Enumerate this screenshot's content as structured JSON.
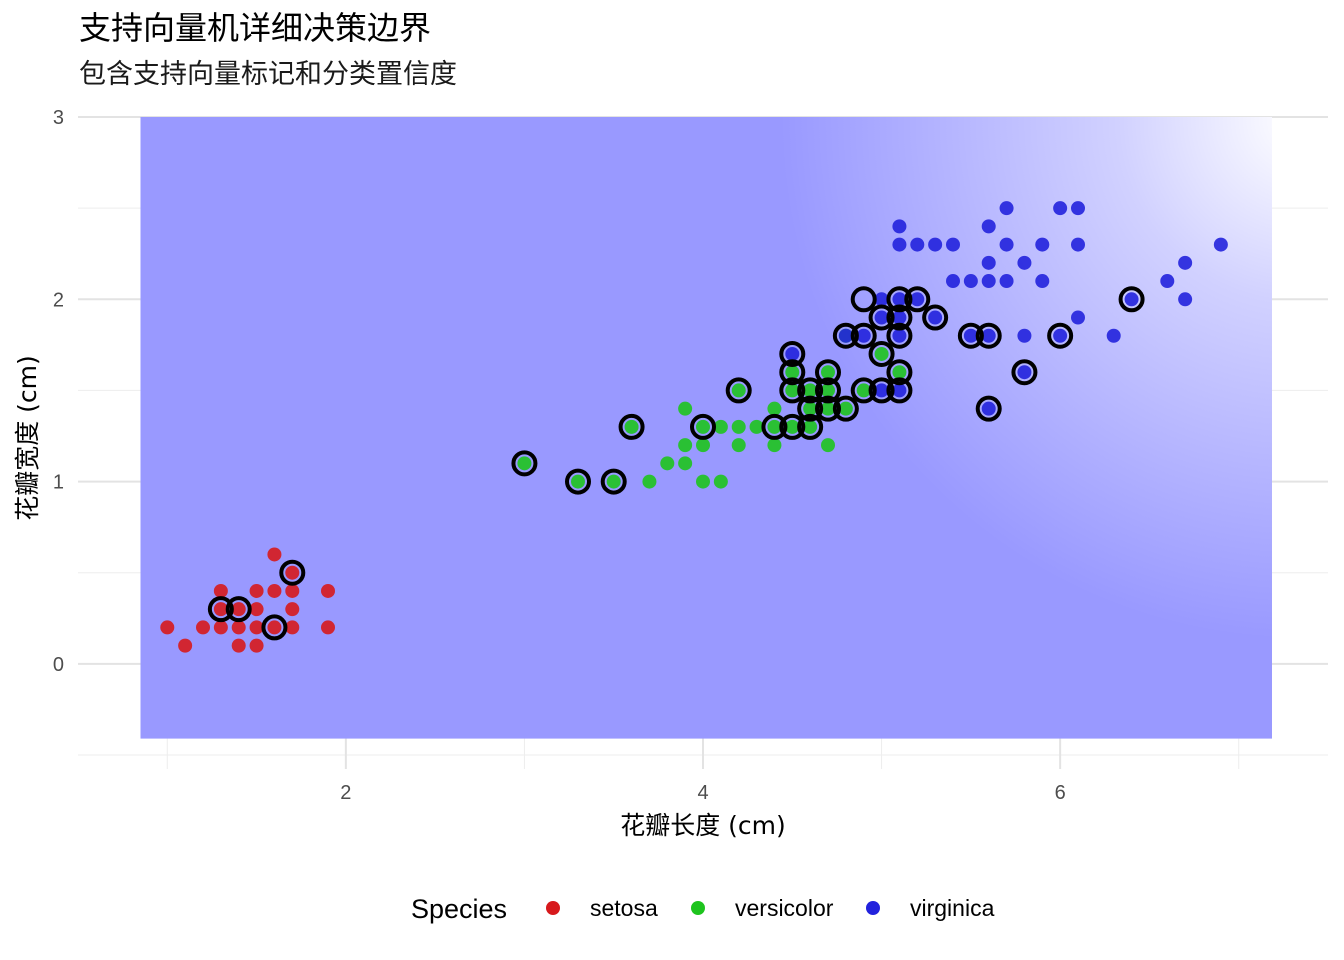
{
  "title": "支持向量机详细决策边界",
  "subtitle": "包含支持向量标记和分类置信度",
  "chart_data": {
    "type": "scatter",
    "title": "支持向量机详细决策边界",
    "subtitle": "包含支持向量标记和分类置信度",
    "xlabel": "花瓣长度 (cm)",
    "ylabel": "花瓣宽度 (cm)",
    "xlim": [
      0.5,
      7.5
    ],
    "ylim": [
      -0.5,
      3.0
    ],
    "x_ticks": [
      2,
      4,
      6
    ],
    "y_ticks": [
      0,
      1,
      2,
      3
    ],
    "grid": true,
    "background": {
      "type": "decision-region",
      "x_range": [
        0.85,
        7.78
      ],
      "y_range": [
        -0.41,
        3.0
      ],
      "color": "#9999ff",
      "fade_to": "#ffffff",
      "fade_corner": "top-right"
    },
    "legend": {
      "title": "Species",
      "position": "bottom",
      "items": [
        {
          "label": "setosa",
          "color": "#d7191c"
        },
        {
          "label": "versicolor",
          "color": "#1ec41e"
        },
        {
          "label": "virginica",
          "color": "#2222dd"
        }
      ]
    },
    "series": [
      {
        "name": "setosa",
        "color": "#d7191c",
        "points": [
          [
            1.0,
            0.2
          ],
          [
            1.1,
            0.1
          ],
          [
            1.2,
            0.2
          ],
          [
            1.3,
            0.2
          ],
          [
            1.3,
            0.3
          ],
          [
            1.3,
            0.4
          ],
          [
            1.4,
            0.1
          ],
          [
            1.4,
            0.2
          ],
          [
            1.4,
            0.3
          ],
          [
            1.5,
            0.1
          ],
          [
            1.5,
            0.2
          ],
          [
            1.5,
            0.3
          ],
          [
            1.5,
            0.4
          ],
          [
            1.6,
            0.2
          ],
          [
            1.6,
            0.4
          ],
          [
            1.6,
            0.6
          ],
          [
            1.7,
            0.2
          ],
          [
            1.7,
            0.3
          ],
          [
            1.7,
            0.4
          ],
          [
            1.7,
            0.5
          ],
          [
            1.9,
            0.2
          ],
          [
            1.9,
            0.4
          ]
        ]
      },
      {
        "name": "versicolor",
        "color": "#1ec41e",
        "points": [
          [
            3.0,
            1.1
          ],
          [
            3.3,
            1.0
          ],
          [
            3.5,
            1.0
          ],
          [
            3.6,
            1.3
          ],
          [
            3.7,
            1.0
          ],
          [
            3.8,
            1.1
          ],
          [
            3.9,
            1.1
          ],
          [
            3.9,
            1.2
          ],
          [
            3.9,
            1.4
          ],
          [
            4.0,
            1.0
          ],
          [
            4.0,
            1.2
          ],
          [
            4.0,
            1.3
          ],
          [
            4.1,
            1.0
          ],
          [
            4.1,
            1.3
          ],
          [
            4.2,
            1.2
          ],
          [
            4.2,
            1.3
          ],
          [
            4.2,
            1.5
          ],
          [
            4.3,
            1.3
          ],
          [
            4.4,
            1.2
          ],
          [
            4.4,
            1.3
          ],
          [
            4.4,
            1.4
          ],
          [
            4.5,
            1.3
          ],
          [
            4.5,
            1.5
          ],
          [
            4.5,
            1.6
          ],
          [
            4.6,
            1.3
          ],
          [
            4.6,
            1.4
          ],
          [
            4.6,
            1.5
          ],
          [
            4.7,
            1.2
          ],
          [
            4.7,
            1.4
          ],
          [
            4.7,
            1.5
          ],
          [
            4.7,
            1.6
          ],
          [
            4.8,
            1.4
          ],
          [
            4.8,
            1.8
          ],
          [
            4.9,
            1.5
          ],
          [
            5.0,
            1.7
          ],
          [
            5.1,
            1.6
          ]
        ]
      },
      {
        "name": "virginica",
        "color": "#2222dd",
        "points": [
          [
            4.5,
            1.7
          ],
          [
            4.8,
            1.8
          ],
          [
            4.9,
            1.8
          ],
          [
            5.0,
            1.5
          ],
          [
            5.0,
            1.9
          ],
          [
            5.0,
            2.0
          ],
          [
            5.1,
            1.5
          ],
          [
            5.1,
            1.8
          ],
          [
            5.1,
            1.9
          ],
          [
            5.1,
            2.0
          ],
          [
            5.1,
            2.3
          ],
          [
            5.1,
            2.4
          ],
          [
            5.2,
            2.0
          ],
          [
            5.2,
            2.3
          ],
          [
            5.3,
            1.9
          ],
          [
            5.3,
            2.3
          ],
          [
            5.4,
            2.1
          ],
          [
            5.4,
            2.3
          ],
          [
            5.5,
            1.8
          ],
          [
            5.5,
            2.1
          ],
          [
            5.6,
            1.4
          ],
          [
            5.6,
            1.8
          ],
          [
            5.6,
            2.1
          ],
          [
            5.6,
            2.2
          ],
          [
            5.6,
            2.4
          ],
          [
            5.7,
            2.1
          ],
          [
            5.7,
            2.3
          ],
          [
            5.7,
            2.5
          ],
          [
            5.8,
            1.6
          ],
          [
            5.8,
            1.8
          ],
          [
            5.8,
            2.2
          ],
          [
            5.9,
            2.1
          ],
          [
            5.9,
            2.3
          ],
          [
            6.0,
            1.8
          ],
          [
            6.0,
            2.5
          ],
          [
            6.1,
            1.9
          ],
          [
            6.1,
            2.3
          ],
          [
            6.1,
            2.5
          ],
          [
            6.3,
            1.8
          ],
          [
            6.4,
            2.0
          ],
          [
            6.6,
            2.1
          ],
          [
            6.7,
            2.0
          ],
          [
            6.7,
            2.2
          ],
          [
            6.9,
            2.3
          ]
        ]
      }
    ],
    "support_vectors": [
      [
        1.3,
        0.3
      ],
      [
        1.4,
        0.3
      ],
      [
        1.6,
        0.2
      ],
      [
        1.7,
        0.5
      ],
      [
        3.0,
        1.1
      ],
      [
        3.3,
        1.0
      ],
      [
        3.5,
        1.0
      ],
      [
        3.6,
        1.3
      ],
      [
        4.0,
        1.3
      ],
      [
        4.2,
        1.5
      ],
      [
        4.4,
        1.3
      ],
      [
        4.5,
        1.3
      ],
      [
        4.5,
        1.5
      ],
      [
        4.5,
        1.6
      ],
      [
        4.5,
        1.7
      ],
      [
        4.6,
        1.3
      ],
      [
        4.6,
        1.4
      ],
      [
        4.6,
        1.5
      ],
      [
        4.7,
        1.4
      ],
      [
        4.7,
        1.5
      ],
      [
        4.7,
        1.6
      ],
      [
        4.8,
        1.4
      ],
      [
        4.8,
        1.8
      ],
      [
        4.9,
        1.5
      ],
      [
        4.9,
        1.8
      ],
      [
        4.9,
        2.0
      ],
      [
        5.0,
        1.5
      ],
      [
        5.0,
        1.7
      ],
      [
        5.0,
        1.9
      ],
      [
        5.1,
        1.5
      ],
      [
        5.1,
        1.6
      ],
      [
        5.1,
        1.8
      ],
      [
        5.1,
        1.9
      ],
      [
        5.1,
        2.0
      ],
      [
        5.2,
        2.0
      ],
      [
        5.3,
        1.9
      ],
      [
        5.5,
        1.8
      ],
      [
        5.6,
        1.4
      ],
      [
        5.6,
        1.8
      ],
      [
        5.8,
        1.6
      ],
      [
        6.0,
        1.8
      ],
      [
        6.4,
        2.0
      ]
    ]
  }
}
